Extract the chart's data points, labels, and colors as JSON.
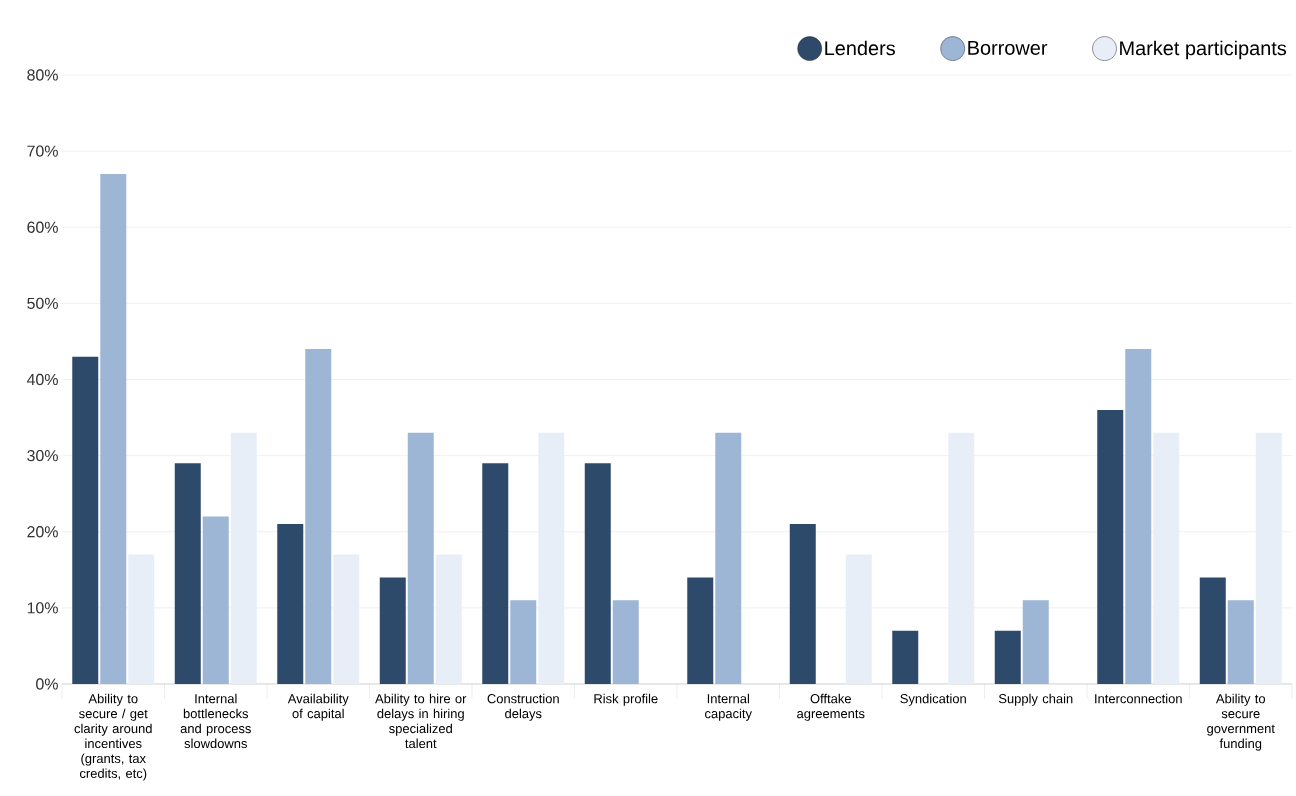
{
  "chart_data": {
    "type": "bar",
    "categories": [
      "Ability to secure / get clarity around incentives (grants, tax credits, etc)",
      "Internal bottlenecks and process slowdowns",
      "Availability of capital",
      "Ability to hire or delays in hiring specialized talent",
      "Construction delays",
      "Risk profile",
      "Internal capacity",
      "Offtake agreements",
      "Syndication",
      "Supply chain",
      "Interconnection",
      "Ability to secure government funding"
    ],
    "series": [
      {
        "name": "Lenders",
        "color": "#2e4a6b",
        "values": [
          43,
          29,
          21,
          14,
          29,
          29,
          14,
          21,
          7,
          7,
          36,
          14
        ]
      },
      {
        "name": "Borrower",
        "color": "#9db6d5",
        "values": [
          67,
          22,
          44,
          33,
          11,
          11,
          33,
          0,
          0,
          11,
          44,
          11
        ]
      },
      {
        "name": "Market participants",
        "color": "#e8eef7",
        "values": [
          17,
          33,
          17,
          17,
          33,
          0,
          0,
          17,
          33,
          0,
          33,
          33
        ]
      }
    ],
    "ylim": [
      0,
      80
    ],
    "yticks": [
      {
        "value": 0,
        "label": "0%"
      },
      {
        "value": 10,
        "label": "10%"
      },
      {
        "value": 20,
        "label": "20%"
      },
      {
        "value": 30,
        "label": "30%"
      },
      {
        "value": 40,
        "label": "40%"
      },
      {
        "value": 50,
        "label": "50%"
      },
      {
        "value": 60,
        "label": "60%"
      },
      {
        "value": 70,
        "label": "70%"
      },
      {
        "value": 80,
        "label": "80%"
      }
    ],
    "grid": "y",
    "legend": "top right",
    "marker": "circle"
  }
}
